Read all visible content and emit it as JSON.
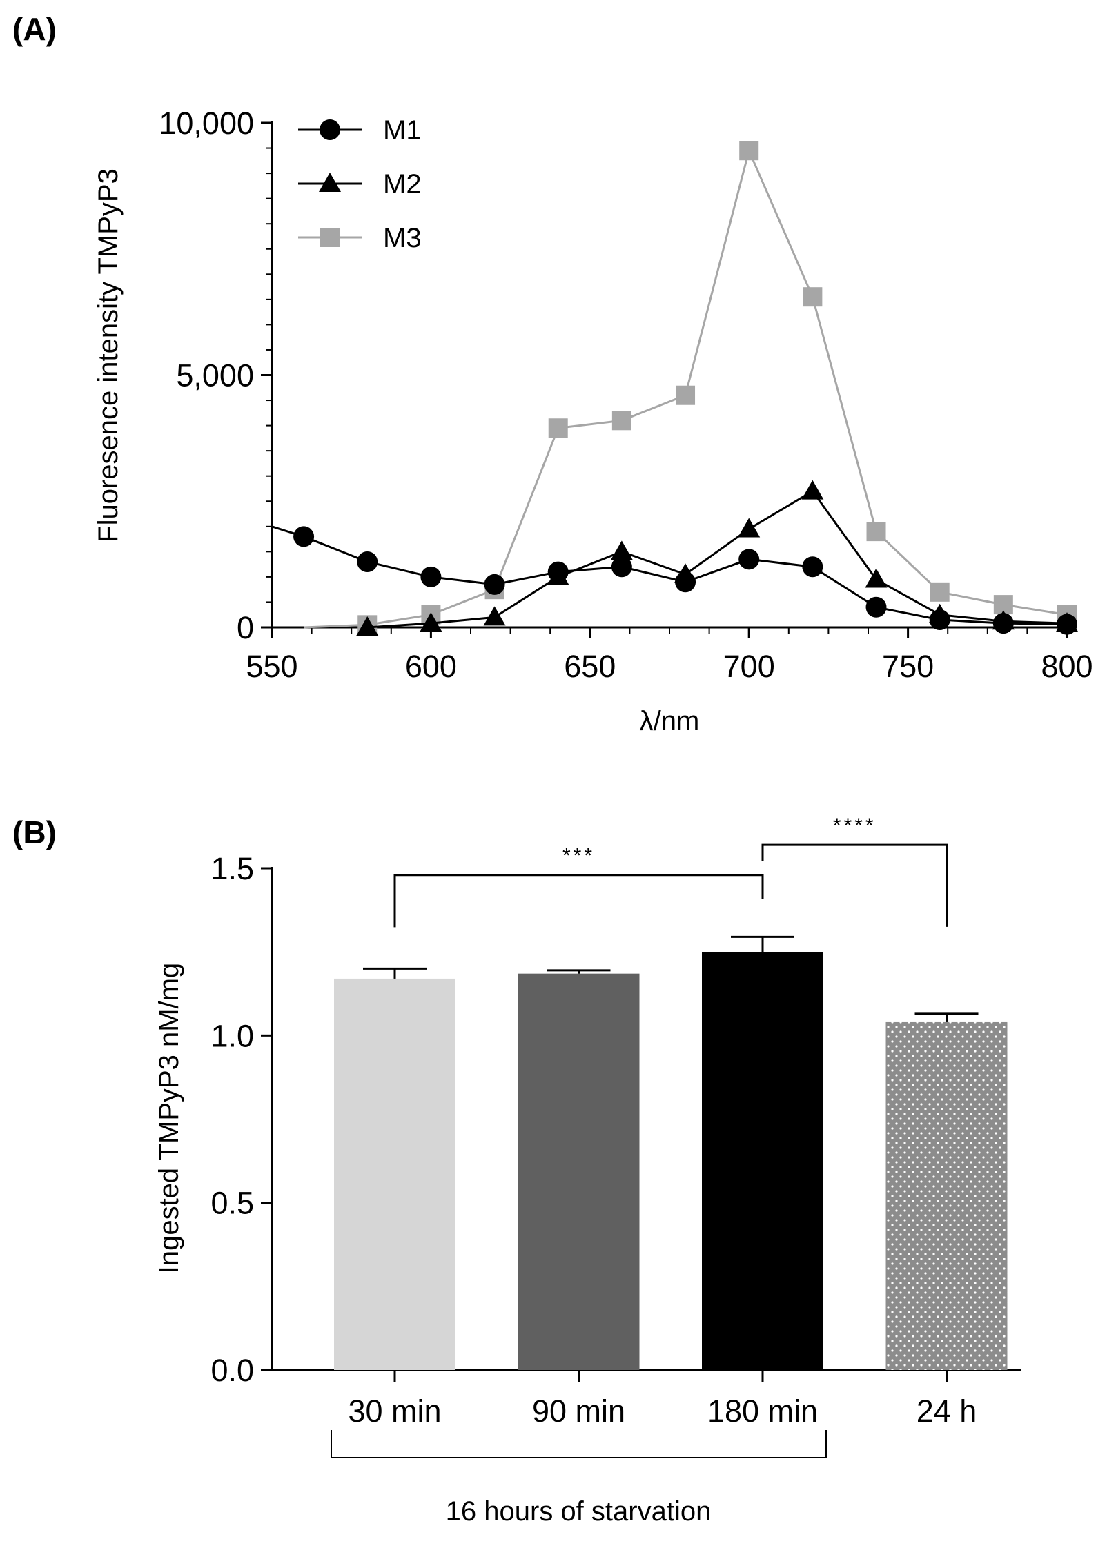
{
  "chart_data": [
    {
      "type": "line",
      "panel_label": "(A)",
      "xlabel": "λ/nm",
      "ylabel": "Fluoresence intensity TMPyP3",
      "xlim": [
        550,
        800
      ],
      "ylim": [
        0,
        10000
      ],
      "x_ticks": [
        550,
        600,
        650,
        700,
        750,
        800
      ],
      "x_tick_labels": [
        "550",
        "600",
        "650",
        "700",
        "750",
        "800"
      ],
      "y_ticks": [
        0,
        5000,
        10000
      ],
      "y_tick_labels": [
        "0",
        "5,000",
        "10,000"
      ],
      "legend_position": "top-left",
      "series": [
        {
          "name": "M1",
          "marker": "circle",
          "color": "#000000",
          "x": [
            550,
            560,
            580,
            600,
            620,
            640,
            660,
            680,
            700,
            720,
            740,
            760,
            780,
            800
          ],
          "y": [
            2000,
            1800,
            1300,
            1000,
            850,
            1100,
            1200,
            900,
            1350,
            1200,
            400,
            150,
            80,
            60
          ],
          "marker_from_index": 1
        },
        {
          "name": "M2",
          "marker": "triangle",
          "color": "#000000",
          "x": [
            580,
            600,
            620,
            640,
            660,
            680,
            700,
            720,
            740,
            760,
            780,
            800
          ],
          "y": [
            0,
            80,
            200,
            1000,
            1500,
            1050,
            1950,
            2700,
            950,
            250,
            120,
            80
          ],
          "marker_from_index": 0
        },
        {
          "name": "M3",
          "marker": "square",
          "color": "#a6a6a6",
          "x": [
            560,
            580,
            600,
            620,
            640,
            660,
            680,
            700,
            720,
            740,
            760,
            780,
            800
          ],
          "y": [
            0,
            50,
            250,
            750,
            3950,
            4100,
            4600,
            9450,
            6550,
            1900,
            700,
            450,
            250
          ],
          "marker_from_index": 1
        }
      ]
    },
    {
      "type": "bar",
      "panel_label": "(B)",
      "xlabel": "",
      "ylabel": "Ingested TMPyP3 nM/mg",
      "ylim": [
        0,
        1.5
      ],
      "y_ticks": [
        0.0,
        0.5,
        1.0,
        1.5
      ],
      "y_tick_labels": [
        "0.0",
        "0.5",
        "1.0",
        "1.5"
      ],
      "categories": [
        "30 min",
        "90 min",
        "180 min",
        "24 h"
      ],
      "values": [
        1.17,
        1.185,
        1.25,
        1.04
      ],
      "errors": [
        0.03,
        0.01,
        0.045,
        0.025
      ],
      "colors": [
        "#d6d6d6",
        "#606060",
        "#000000",
        "#8c8c8c"
      ],
      "patterns": [
        "solid",
        "solid",
        "solid",
        "dots"
      ],
      "group_label": "16 hours of starvation",
      "group_categories": [
        0,
        2
      ],
      "significance": [
        {
          "label": "***",
          "from": 0,
          "to": 2,
          "y": 1.48
        },
        {
          "label": "****",
          "from": 2,
          "to": 3,
          "y": 1.57
        }
      ]
    }
  ]
}
